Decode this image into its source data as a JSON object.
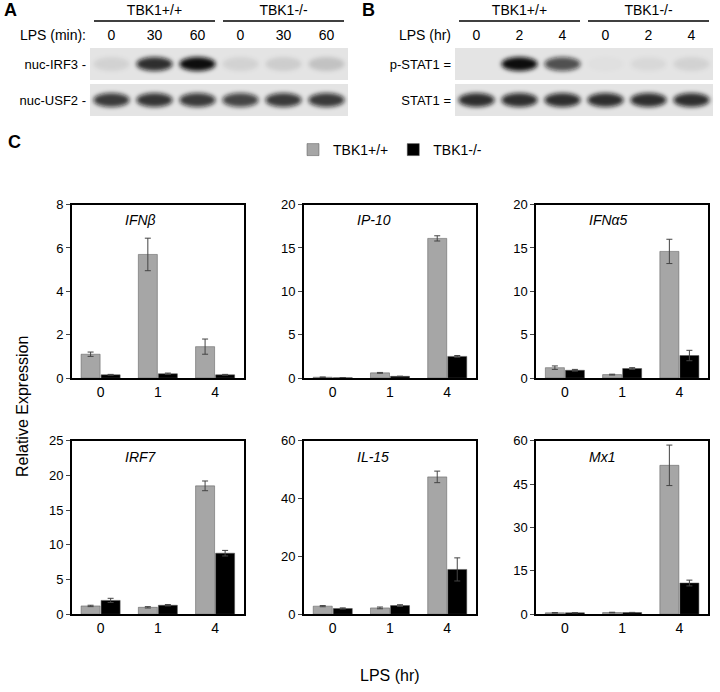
{
  "blots": [
    {
      "panel": "A",
      "groups": [
        "TBK1+/+",
        "TBK1-/-"
      ],
      "lane_title": "LPS (min):",
      "lanes": [
        "0",
        "30",
        "60",
        "0",
        "30",
        "60"
      ],
      "rows": [
        {
          "label": "nuc-IRF3 -",
          "intensity": [
            0.08,
            0.85,
            1.0,
            0.08,
            0.1,
            0.15
          ]
        },
        {
          "label": "nuc-USF2 -",
          "intensity": [
            0.8,
            0.82,
            0.8,
            0.75,
            0.8,
            0.8
          ]
        }
      ]
    },
    {
      "panel": "B",
      "groups": [
        "TBK1+/+",
        "TBK1-/-"
      ],
      "lane_title": "LPS (hr)",
      "lanes": [
        "0",
        "2",
        "4",
        "0",
        "2",
        "4"
      ],
      "rows": [
        {
          "label": "p-STAT1 =",
          "intensity": [
            0.0,
            1.0,
            0.7,
            0.02,
            0.05,
            0.08
          ]
        },
        {
          "label": "STAT1 =",
          "intensity": [
            0.85,
            0.85,
            0.85,
            0.85,
            0.85,
            0.85
          ]
        }
      ]
    }
  ],
  "panel": "C",
  "shared_axes": {
    "x_label": "LPS (hr)",
    "y_label": "Relative Expression"
  },
  "chart_data": [
    {
      "type": "bar",
      "title": "IFNβ",
      "categories": [
        "0",
        "1",
        "4"
      ],
      "ylim": [
        0,
        8
      ],
      "yticks": [
        0,
        2,
        4,
        6,
        8
      ],
      "legend": "top",
      "series": [
        {
          "name": "TBK1+/+",
          "color": "#a6a6a6",
          "values": [
            1.1,
            5.7,
            1.45
          ],
          "errors": [
            0.1,
            0.75,
            0.35
          ]
        },
        {
          "name": "TBK1-/-",
          "color": "#000000",
          "values": [
            0.15,
            0.2,
            0.15
          ],
          "errors": [
            0.02,
            0.03,
            0.02
          ]
        }
      ]
    },
    {
      "type": "bar",
      "title": "IP-10",
      "categories": [
        "0",
        "1",
        "4"
      ],
      "ylim": [
        0,
        20
      ],
      "yticks": [
        0,
        5,
        10,
        15,
        20
      ],
      "series": [
        {
          "name": "TBK1+/+",
          "color": "#a6a6a6",
          "values": [
            0.1,
            0.6,
            16.1
          ],
          "errors": [
            0.02,
            0.05,
            0.3
          ]
        },
        {
          "name": "TBK1-/-",
          "color": "#000000",
          "values": [
            0.05,
            0.2,
            2.5
          ],
          "errors": [
            0.01,
            0.02,
            0.1
          ]
        }
      ]
    },
    {
      "type": "bar",
      "title": "IFNα5",
      "categories": [
        "0",
        "1",
        "4"
      ],
      "ylim": [
        0,
        20
      ],
      "yticks": [
        0,
        5,
        10,
        15,
        20
      ],
      "series": [
        {
          "name": "TBK1+/+",
          "color": "#a6a6a6",
          "values": [
            1.2,
            0.4,
            14.6
          ],
          "errors": [
            0.2,
            0.05,
            1.4
          ]
        },
        {
          "name": "TBK1-/-",
          "color": "#000000",
          "values": [
            0.9,
            1.1,
            2.6
          ],
          "errors": [
            0.1,
            0.1,
            0.6
          ]
        }
      ]
    },
    {
      "type": "bar",
      "title": "IRF7",
      "categories": [
        "0",
        "1",
        "4"
      ],
      "ylim": [
        0,
        25
      ],
      "yticks": [
        0,
        5,
        10,
        15,
        20,
        25
      ],
      "series": [
        {
          "name": "TBK1+/+",
          "color": "#a6a6a6",
          "values": [
            1.2,
            1.0,
            18.5
          ],
          "errors": [
            0.1,
            0.1,
            0.7
          ]
        },
        {
          "name": "TBK1-/-",
          "color": "#000000",
          "values": [
            2.0,
            1.3,
            8.8
          ],
          "errors": [
            0.3,
            0.1,
            0.4
          ]
        }
      ]
    },
    {
      "type": "bar",
      "title": "IL-15",
      "categories": [
        "0",
        "1",
        "4"
      ],
      "ylim": [
        0,
        60
      ],
      "yticks": [
        0,
        20,
        40,
        60
      ],
      "series": [
        {
          "name": "TBK1+/+",
          "color": "#a6a6a6",
          "values": [
            2.8,
            2.2,
            47.5
          ],
          "errors": [
            0.2,
            0.3,
            2.0
          ]
        },
        {
          "name": "TBK1-/-",
          "color": "#000000",
          "values": [
            2.0,
            3.0,
            15.5
          ],
          "errors": [
            0.2,
            0.3,
            4.0
          ]
        }
      ]
    },
    {
      "type": "bar",
      "title": "Mx1",
      "categories": [
        "0",
        "1",
        "4"
      ],
      "ylim": [
        0,
        60
      ],
      "yticks": [
        0,
        15,
        30,
        45,
        60
      ],
      "series": [
        {
          "name": "TBK1+/+",
          "color": "#a6a6a6",
          "values": [
            0.5,
            0.6,
            51.5
          ],
          "errors": [
            0.1,
            0.1,
            7.0
          ]
        },
        {
          "name": "TBK1-/-",
          "color": "#000000",
          "values": [
            0.5,
            0.6,
            10.8
          ],
          "errors": [
            0.05,
            0.05,
            1.0
          ]
        }
      ]
    }
  ]
}
